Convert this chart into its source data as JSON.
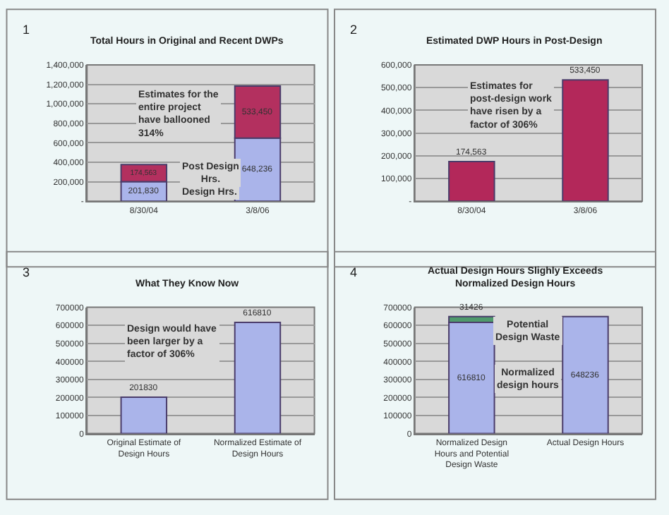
{
  "chart_data": [
    {
      "type": "bar",
      "title": "Total Hours in Original and Recent DWPs",
      "categories": [
        "8/30/04",
        "3/8/06"
      ],
      "stacked": true,
      "data_labels": true,
      "grid": "y",
      "ylim": [
        0,
        1400000
      ],
      "yticks": [
        {
          "value": 0,
          "label": "-"
        },
        {
          "value": 200000,
          "label": "200,000"
        },
        {
          "value": 400000,
          "label": "400,000"
        },
        {
          "value": 600000,
          "label": "600,000"
        },
        {
          "value": 800000,
          "label": "800,000"
        },
        {
          "value": 1000000,
          "label": "1,000,000"
        },
        {
          "value": 1200000,
          "label": "1,200,000"
        },
        {
          "value": 1400000,
          "label": "1,400,000"
        }
      ],
      "series": [
        {
          "color": "#aab4ea",
          "values": [
            201830,
            648236
          ],
          "value_labels": [
            "201,830",
            "648,236"
          ]
        },
        {
          "color": "#b3305f",
          "values": [
            174563,
            533450
          ],
          "value_labels": [
            "174,563",
            "533,450"
          ]
        }
      ],
      "annotations": [
        "1",
        "Estimates for the entire project have ballooned 314%",
        "Post Design Hrs.",
        "Design Hrs."
      ]
    },
    {
      "type": "bar",
      "title": "Estimated DWP Hours in Post-Design",
      "categories": [
        "8/30/04",
        "3/8/06"
      ],
      "data_labels": true,
      "grid": "y",
      "ylim": [
        0,
        600000
      ],
      "yticks": [
        {
          "value": 0,
          "label": "-"
        },
        {
          "value": 100000,
          "label": "100,000"
        },
        {
          "value": 200000,
          "label": "200,000"
        },
        {
          "value": 300000,
          "label": "300,000"
        },
        {
          "value": 400000,
          "label": "400,000"
        },
        {
          "value": 500000,
          "label": "500,000"
        },
        {
          "value": 600000,
          "label": "600,000"
        }
      ],
      "series": [
        {
          "color": "#b3285a",
          "values": [
            174563,
            533450
          ],
          "value_labels": [
            "174,563",
            "533,450"
          ]
        }
      ],
      "annotations": [
        "2",
        "Estimates for post-design work have risen by a factor of 306%"
      ]
    },
    {
      "type": "bar",
      "title": "What They Know Now",
      "categories": [
        "Original Estimate of Design Hours",
        "Normalized Estimate of Design Hours"
      ],
      "data_labels": true,
      "grid": "y",
      "ylim": [
        0,
        700000
      ],
      "yticks": [
        0,
        100000,
        200000,
        300000,
        400000,
        500000,
        600000,
        700000
      ],
      "series": [
        {
          "color": "#aab4ea",
          "values": [
            201830,
            616810
          ]
        }
      ],
      "annotations": [
        "3",
        "Design would have been larger by a factor of 306%"
      ]
    },
    {
      "type": "bar",
      "title": "Actual Design Hours Slighly Exceeds\nNormalized Design Hours",
      "categories": [
        "Normalized Design Hours and Potential Design Waste",
        "Actual Design Hours"
      ],
      "stacked": true,
      "data_labels": true,
      "grid": "y",
      "ylim": [
        0,
        700000
      ],
      "yticks": [
        0,
        100000,
        200000,
        300000,
        400000,
        500000,
        600000,
        700000
      ],
      "series": [
        {
          "color": "#aab4ea",
          "values": [
            616810,
            648236
          ]
        },
        {
          "color": "#4f9a6c",
          "values": [
            31426,
            null
          ]
        }
      ],
      "annotations": [
        "4",
        "Potential Design Waste",
        "Normalized design hours"
      ]
    }
  ]
}
